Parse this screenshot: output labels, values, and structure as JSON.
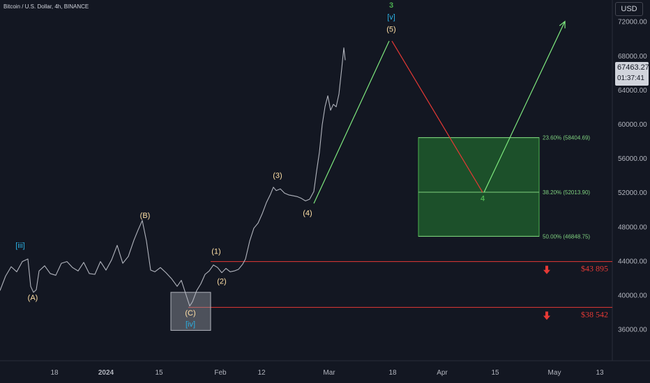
{
  "symbol_title": "Bitcoin / U.S. Dollar, 4h, BINANCE",
  "currency_button": "USD",
  "last_price": "67463.27",
  "countdown": "01:37:41",
  "colors": {
    "background": "#131722",
    "price_line": "#b2b5be",
    "up_arrow": "#4caf50",
    "down_arrow": "#e53935",
    "fib_zone_fill": "#1e5b2b",
    "fib_zone_border": "#4caf50",
    "support_line": "#e53935",
    "wave_yellow": "#ffe0a6",
    "wave_cyan": "#2bb0e3",
    "wave_green": "#4caf50"
  },
  "chart_data": {
    "type": "line",
    "y_axis_ticks": [
      "72000.00",
      "68000.00",
      "64000.00",
      "60000.00",
      "56000.00",
      "52000.00",
      "48000.00",
      "44000.00",
      "40000.00",
      "36000.00"
    ],
    "ylim": [
      32300,
      74500
    ],
    "x_axis_ticks": [
      "18",
      "2024",
      "15",
      "Feb",
      "12",
      "Mar",
      "18",
      "Apr",
      "15",
      "May",
      "13"
    ],
    "price_series": [
      [
        0,
        40500
      ],
      [
        8,
        42200
      ],
      [
        16,
        43300
      ],
      [
        24,
        42700
      ],
      [
        32,
        43900
      ],
      [
        40,
        44200
      ],
      [
        44,
        41000
      ],
      [
        48,
        40300
      ],
      [
        52,
        40600
      ],
      [
        56,
        42800
      ],
      [
        64,
        43400
      ],
      [
        72,
        42500
      ],
      [
        80,
        42300
      ],
      [
        88,
        43700
      ],
      [
        96,
        43900
      ],
      [
        104,
        43200
      ],
      [
        112,
        42800
      ],
      [
        120,
        43800
      ],
      [
        128,
        42500
      ],
      [
        136,
        42400
      ],
      [
        144,
        43900
      ],
      [
        152,
        42900
      ],
      [
        160,
        44100
      ],
      [
        168,
        45800
      ],
      [
        176,
        43700
      ],
      [
        184,
        44500
      ],
      [
        192,
        46400
      ],
      [
        198,
        47600
      ],
      [
        204,
        48700
      ],
      [
        210,
        46300
      ],
      [
        216,
        42900
      ],
      [
        222,
        42700
      ],
      [
        230,
        43200
      ],
      [
        238,
        42600
      ],
      [
        246,
        41900
      ],
      [
        254,
        41000
      ],
      [
        260,
        41700
      ],
      [
        266,
        40200
      ],
      [
        272,
        38700
      ],
      [
        276,
        39200
      ],
      [
        282,
        40500
      ],
      [
        288,
        41300
      ],
      [
        294,
        42400
      ],
      [
        300,
        42800
      ],
      [
        306,
        43500
      ],
      [
        312,
        43200
      ],
      [
        318,
        42600
      ],
      [
        324,
        43100
      ],
      [
        330,
        42700
      ],
      [
        336,
        42800
      ],
      [
        342,
        43000
      ],
      [
        348,
        43600
      ],
      [
        352,
        44200
      ],
      [
        358,
        46300
      ],
      [
        364,
        47800
      ],
      [
        370,
        48400
      ],
      [
        376,
        49500
      ],
      [
        382,
        50800
      ],
      [
        388,
        51800
      ],
      [
        392,
        52600
      ],
      [
        396,
        52200
      ],
      [
        402,
        52400
      ],
      [
        408,
        51900
      ],
      [
        414,
        51700
      ],
      [
        420,
        51600
      ],
      [
        426,
        51500
      ],
      [
        432,
        51300
      ],
      [
        438,
        51000
      ],
      [
        444,
        51200
      ],
      [
        450,
        52100
      ],
      [
        454,
        54500
      ],
      [
        458,
        56700
      ],
      [
        462,
        59900
      ],
      [
        466,
        62000
      ],
      [
        470,
        63300
      ],
      [
        474,
        61600
      ],
      [
        478,
        62300
      ],
      [
        482,
        62000
      ],
      [
        486,
        63500
      ],
      [
        490,
        66500
      ],
      [
        493,
        68900
      ],
      [
        495,
        67463
      ]
    ],
    "projection_up_1": [
      [
        450,
        50700
      ],
      [
        558,
        69700
      ]
    ],
    "projection_down": [
      [
        562,
        69700
      ],
      [
        692,
        52000
      ]
    ],
    "projection_up_2": [
      [
        694,
        52000
      ],
      [
        810,
        72000
      ]
    ],
    "fib_zone": {
      "x_from": 600,
      "x_to": 773,
      "top": 58404.69,
      "bottom": 46848.75
    },
    "fib_levels": [
      {
        "label": "23.60% (58404.69)",
        "value": 58404.69
      },
      {
        "label": "38.20% (52013.90)",
        "value": 52013.9
      },
      {
        "label": "50.00% (46848.75)",
        "value": 46848.75
      }
    ],
    "support_levels": [
      {
        "label": "$43 895",
        "value": 43895
      },
      {
        "label": "$38 542",
        "value": 38542
      }
    ],
    "wave_box": {
      "x_from": 245,
      "x_to": 302,
      "top": 40300,
      "bottom": 35850
    },
    "wave_labels": [
      {
        "text": "[iii]",
        "x": 29,
        "y": 45500,
        "color": "cyan"
      },
      {
        "text": "(A)",
        "x": 47,
        "y": 39400,
        "color": "yellow"
      },
      {
        "text": "(B)",
        "x": 208,
        "y": 49000,
        "color": "yellow"
      },
      {
        "text": "(C)",
        "x": 273,
        "y": 37600,
        "color": "yellow"
      },
      {
        "text": "[iv]",
        "x": 273,
        "y": 36300,
        "color": "cyan"
      },
      {
        "text": "(1)",
        "x": 310,
        "y": 44800,
        "color": "yellow"
      },
      {
        "text": "(2)",
        "x": 318,
        "y": 41300,
        "color": "yellow"
      },
      {
        "text": "(3)",
        "x": 398,
        "y": 53700,
        "color": "yellow"
      },
      {
        "text": "(4)",
        "x": 441,
        "y": 49300,
        "color": "yellow"
      },
      {
        "text": "(5)",
        "x": 561,
        "y": 70800,
        "color": "yellow"
      },
      {
        "text": "[v]",
        "x": 561,
        "y": 72200,
        "color": "cyan"
      },
      {
        "text": "3",
        "x": 561,
        "y": 73600,
        "color": "green"
      },
      {
        "text": "4",
        "x": 692,
        "y": 51000,
        "color": "green"
      }
    ]
  }
}
